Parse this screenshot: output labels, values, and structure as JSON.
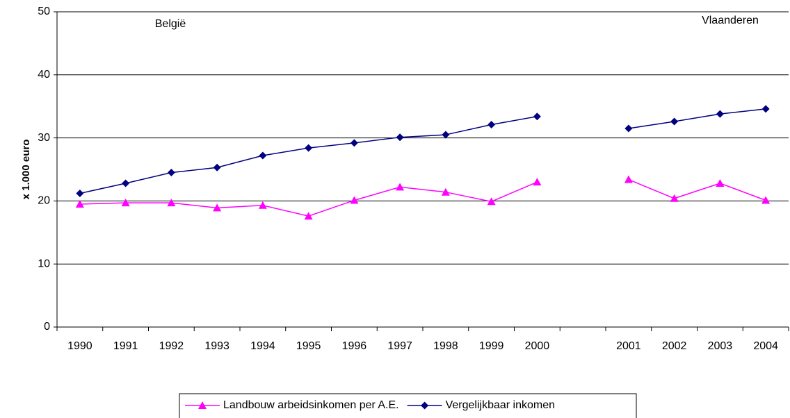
{
  "chart_data": {
    "type": "line",
    "y_label": "x 1.000 euro",
    "annotations": [
      "België",
      "Vlaanderen"
    ],
    "categories": [
      "1990",
      "1991",
      "1992",
      "1993",
      "1994",
      "1995",
      "1996",
      "1997",
      "1998",
      "1999",
      "2000",
      null,
      "2001",
      "2002",
      "2003",
      "2004"
    ],
    "series": [
      {
        "name": "Landbouw arbeidsinkomen per A.E.",
        "color": "#ff00ff",
        "marker": "triangle",
        "values": [
          19.5,
          19.7,
          19.7,
          18.9,
          19.3,
          17.6,
          20.1,
          22.2,
          21.4,
          19.9,
          23.0,
          null,
          23.4,
          20.4,
          22.8,
          20.1
        ]
      },
      {
        "name": "Vergelijkbaar inkomen",
        "color": "#000080",
        "marker": "diamond",
        "values": [
          21.2,
          22.8,
          24.5,
          25.3,
          27.2,
          28.4,
          29.2,
          30.1,
          30.5,
          32.1,
          33.4,
          null,
          31.5,
          32.6,
          33.8,
          34.6
        ]
      }
    ],
    "ylim": [
      0,
      50
    ],
    "yticks": [
      0,
      10,
      20,
      30,
      40,
      50
    ],
    "grid": true,
    "legend": "bottom"
  }
}
